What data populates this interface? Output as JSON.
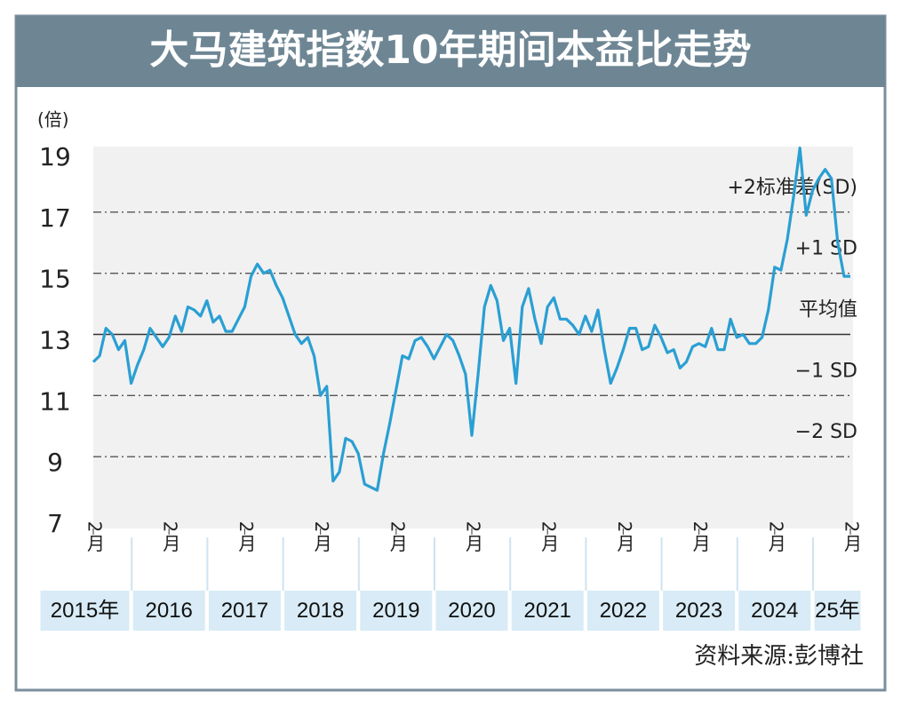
{
  "chart_data": {
    "type": "line",
    "title": "大马建筑指数10年期间本益比走势",
    "y_label": "(倍)",
    "source": "资料来源:彭博社",
    "x": [
      "2015-02",
      "2015-03",
      "2015-04",
      "2015-05",
      "2015-06",
      "2015-07",
      "2015-08",
      "2015-09",
      "2015-10",
      "2015-11",
      "2015-12",
      "2016-01",
      "2016-02",
      "2016-03",
      "2016-04",
      "2016-05",
      "2016-06",
      "2016-07",
      "2016-08",
      "2016-09",
      "2016-10",
      "2016-11",
      "2016-12",
      "2017-01",
      "2017-02",
      "2017-03",
      "2017-04",
      "2017-05",
      "2017-06",
      "2017-07",
      "2017-08",
      "2017-09",
      "2017-10",
      "2017-11",
      "2017-12",
      "2018-01",
      "2018-02",
      "2018-03",
      "2018-04",
      "2018-05",
      "2018-06",
      "2018-07",
      "2018-08",
      "2018-09",
      "2018-10",
      "2018-11",
      "2018-12",
      "2019-01",
      "2019-02",
      "2019-03",
      "2019-04",
      "2019-05",
      "2019-06",
      "2019-07",
      "2019-08",
      "2019-09",
      "2019-10",
      "2019-11",
      "2019-12",
      "2020-01",
      "2020-02",
      "2020-03",
      "2020-04",
      "2020-05",
      "2020-06",
      "2020-07",
      "2020-08",
      "2020-09",
      "2020-10",
      "2020-11",
      "2020-12",
      "2021-01",
      "2021-02",
      "2021-03",
      "2021-04",
      "2021-05",
      "2021-06",
      "2021-07",
      "2021-08",
      "2021-09",
      "2021-10",
      "2021-11",
      "2021-12",
      "2022-01",
      "2022-02",
      "2022-03",
      "2022-04",
      "2022-05",
      "2022-06",
      "2022-07",
      "2022-08",
      "2022-09",
      "2022-10",
      "2022-11",
      "2022-12",
      "2023-01",
      "2023-02",
      "2023-03",
      "2023-04",
      "2023-05",
      "2023-06",
      "2023-07",
      "2023-08",
      "2023-09",
      "2023-10",
      "2023-11",
      "2023-12",
      "2024-01",
      "2024-02",
      "2024-03",
      "2024-04",
      "2024-05",
      "2024-06",
      "2024-07",
      "2024-08",
      "2024-09",
      "2024-10",
      "2024-11",
      "2024-12",
      "2025-01",
      "2025-02"
    ],
    "series": [
      {
        "color": "#2a9fd3",
        "values": [
          12.1,
          12.3,
          13.2,
          13.0,
          12.5,
          12.8,
          11.4,
          12.0,
          12.5,
          13.2,
          12.9,
          12.6,
          12.9,
          13.6,
          13.1,
          13.9,
          13.8,
          13.6,
          14.1,
          13.4,
          13.6,
          13.1,
          13.1,
          13.5,
          13.9,
          14.9,
          15.3,
          15.0,
          15.1,
          14.6,
          14.2,
          13.6,
          13.0,
          12.7,
          12.9,
          12.3,
          11.0,
          11.3,
          8.2,
          8.5,
          9.6,
          9.5,
          9.1,
          8.1,
          8.0,
          7.9,
          9.1,
          10.1,
          11.2,
          12.3,
          12.2,
          12.8,
          12.9,
          12.6,
          12.2,
          12.6,
          13.0,
          12.8,
          12.3,
          11.7,
          9.7,
          11.7,
          13.9,
          14.6,
          14.1,
          12.8,
          13.2,
          11.4,
          13.9,
          14.5,
          13.5,
          12.7,
          13.9,
          14.2,
          13.5,
          13.5,
          13.3,
          13.0,
          13.6,
          13.1,
          13.8,
          12.5,
          11.4,
          11.9,
          12.5,
          13.2,
          13.2,
          12.5,
          12.6,
          13.3,
          12.9,
          12.4,
          12.5,
          11.9,
          12.1,
          12.6,
          12.7,
          12.6,
          13.2,
          12.5,
          12.5,
          13.5,
          12.9,
          13.0,
          12.7,
          12.7,
          12.9,
          13.8,
          15.2,
          15.1,
          16.1,
          17.5,
          19.1,
          16.9,
          17.7,
          18.1,
          18.4,
          18.1,
          16.0,
          14.9,
          14.9
        ]
      }
    ],
    "xlim": [
      "2015-02",
      "2025-02"
    ],
    "xticks": [
      {
        "value": "2015-02",
        "label": "2月"
      },
      {
        "value": "2016-02",
        "label": "2月"
      },
      {
        "value": "2017-02",
        "label": "2月"
      },
      {
        "value": "2018-02",
        "label": "2月"
      },
      {
        "value": "2019-02",
        "label": "2月"
      },
      {
        "value": "2020-02",
        "label": "2月"
      },
      {
        "value": "2021-02",
        "label": "2月"
      },
      {
        "value": "2022-02",
        "label": "2月"
      },
      {
        "value": "2023-02",
        "label": "2月"
      },
      {
        "value": "2024-02",
        "label": "2月"
      },
      {
        "value": "2025-02",
        "label": "2月"
      }
    ],
    "year_labels": [
      "2015年",
      "2016",
      "2017",
      "2018",
      "2019",
      "2020",
      "2021",
      "2022",
      "2023",
      "2024",
      "25年"
    ],
    "ylim": [
      7,
      19
    ],
    "yticks": [
      7,
      9,
      11,
      13,
      15,
      17,
      19
    ],
    "reference_lines": [
      {
        "value": 17,
        "label": "+2标准差(SD)",
        "style": "dash-dot"
      },
      {
        "value": 15,
        "label": "+1 SD",
        "style": "dash-dot"
      },
      {
        "value": 13,
        "label": "平均值",
        "style": "solid"
      },
      {
        "value": 11,
        "label": "−1 SD",
        "style": "dash-dot"
      },
      {
        "value": 9,
        "label": "−2 SD",
        "style": "dash-dot"
      }
    ]
  }
}
